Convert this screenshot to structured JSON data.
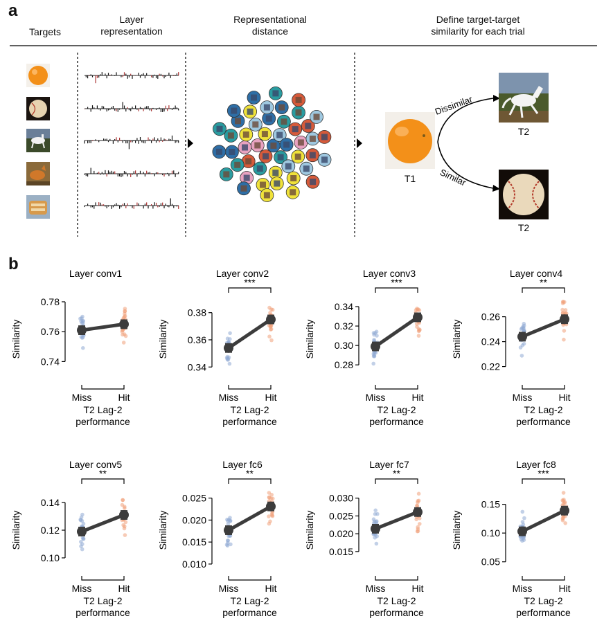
{
  "panel_a": {
    "letter": "a",
    "headers": {
      "targets": "Targets",
      "layer_line1": "Layer",
      "layer_line2": "representation",
      "rd_line1": "Representational",
      "rd_line2": "distance",
      "def_line1": "Define target-target",
      "def_line2": "similarity for each trial"
    },
    "t1": "T1",
    "t2_top": "T2",
    "t2_bottom": "T2",
    "dissimilar": "Dissimilar",
    "similar": "Similar",
    "colors": {
      "orange": "#f39019",
      "circle_blue": "#2e6ea6",
      "circle_teal": "#2a9ca0",
      "circle_red": "#d65a3a",
      "circle_pink": "#e8a2c0",
      "circle_yellow": "#f0e23a",
      "circle_lightblue": "#9fc8e0"
    },
    "target_icons": [
      "orange-icon",
      "baseball-icon",
      "horse-icon",
      "fox-icon",
      "bread-icon"
    ]
  },
  "panel_b": {
    "letter": "b",
    "ylabel": "Similarity",
    "x_miss": "Miss",
    "x_hit": "Hit",
    "xlabel_line1": "T2 Lag-2",
    "xlabel_line2": "performance",
    "colors": {
      "miss": "#8fa9d4",
      "hit": "#f0a07a",
      "line": "#3c3c3c"
    }
  },
  "chart_data": [
    {
      "type": "scatter",
      "title": "Layer conv1",
      "categories": [
        "Miss",
        "Hit"
      ],
      "means": [
        0.761,
        0.765
      ],
      "ylim": [
        0.73,
        0.78
      ],
      "yticks": [
        0.74,
        0.76,
        0.78
      ],
      "tick_labels": [
        "0.74",
        "0.76",
        "0.78"
      ],
      "significance": ""
    },
    {
      "type": "scatter",
      "title": "Layer conv2",
      "categories": [
        "Miss",
        "Hit"
      ],
      "means": [
        0.354,
        0.375
      ],
      "ylim": [
        0.333,
        0.388
      ],
      "yticks": [
        0.34,
        0.36,
        0.38
      ],
      "tick_labels": [
        "0.34",
        "0.36",
        "0.38"
      ],
      "significance": "***"
    },
    {
      "type": "scatter",
      "title": "Layer conv3",
      "categories": [
        "Miss",
        "Hit"
      ],
      "means": [
        0.299,
        0.329
      ],
      "ylim": [
        0.268,
        0.345
      ],
      "yticks": [
        0.28,
        0.3,
        0.32,
        0.34
      ],
      "tick_labels": [
        "0.28",
        "0.30",
        "0.32",
        "0.34"
      ],
      "significance": "***"
    },
    {
      "type": "scatter",
      "title": "Layer conv4",
      "categories": [
        "Miss",
        "Hit"
      ],
      "means": [
        0.244,
        0.258
      ],
      "ylim": [
        0.212,
        0.272
      ],
      "yticks": [
        0.22,
        0.24,
        0.26
      ],
      "tick_labels": [
        "0.22",
        "0.24",
        "0.26"
      ],
      "significance": "**"
    },
    {
      "type": "scatter",
      "title": "Layer conv5",
      "categories": [
        "Miss",
        "Hit"
      ],
      "means": [
        0.119,
        0.131
      ],
      "ylim": [
        0.093,
        0.147
      ],
      "yticks": [
        0.1,
        0.12,
        0.14
      ],
      "tick_labels": [
        "0.10",
        "0.12",
        "0.14"
      ],
      "significance": "**"
    },
    {
      "type": "scatter",
      "title": "Layer fc6",
      "categories": [
        "Miss",
        "Hit"
      ],
      "means": [
        0.0177,
        0.0231
      ],
      "ylim": [
        0.0092,
        0.0262
      ],
      "yticks": [
        0.01,
        0.015,
        0.02,
        0.025
      ],
      "tick_labels": [
        "0.010",
        "0.015",
        "0.020",
        "0.025"
      ],
      "significance": "**"
    },
    {
      "type": "scatter",
      "title": "Layer fc7",
      "categories": [
        "Miss",
        "Hit"
      ],
      "means": [
        0.0214,
        0.0261
      ],
      "ylim": [
        0.0105,
        0.0315
      ],
      "yticks": [
        0.015,
        0.02,
        0.025,
        0.03
      ],
      "tick_labels": [
        "0.015",
        "0.020",
        "0.025",
        "0.030"
      ],
      "significance": "**"
    },
    {
      "type": "scatter",
      "title": "Layer fc8",
      "categories": [
        "Miss",
        "Hit"
      ],
      "means": [
        0.103,
        0.139
      ],
      "ylim": [
        0.04,
        0.17
      ],
      "yticks": [
        0.05,
        0.1,
        0.15
      ],
      "tick_labels": [
        "0.05",
        "0.10",
        "0.15"
      ],
      "significance": "***"
    }
  ]
}
